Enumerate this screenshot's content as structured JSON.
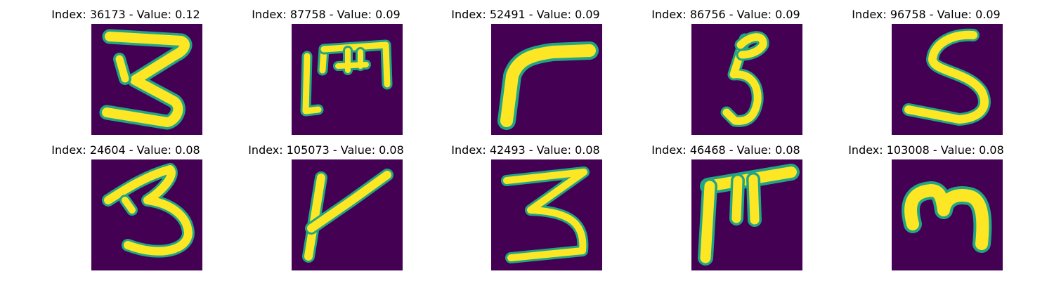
{
  "figure": {
    "colormap": "viridis",
    "background_color": "#440154",
    "stroke_color": "#fde725",
    "edge_color": "#21a585"
  },
  "tiles": [
    {
      "title": "Index: 36173 - Value: 0.12",
      "glyph": "3"
    },
    {
      "title": "Index: 87758 - Value: 0.09",
      "glyph": "E"
    },
    {
      "title": "Index: 52491 - Value: 0.09",
      "glyph": "r"
    },
    {
      "title": "Index: 86756 - Value: 0.09",
      "glyph": "5"
    },
    {
      "title": "Index: 96758 - Value: 0.09",
      "glyph": "S"
    },
    {
      "title": "Index: 24604 - Value: 0.08",
      "glyph": "3"
    },
    {
      "title": "Index: 105073 - Value: 0.08",
      "glyph": "K"
    },
    {
      "title": "Index: 42493 - Value: 0.08",
      "glyph": "3"
    },
    {
      "title": "Index: 46468 - Value: 0.08",
      "glyph": "E"
    },
    {
      "title": "Index: 103008 - Value: 0.08",
      "glyph": "m"
    }
  ]
}
